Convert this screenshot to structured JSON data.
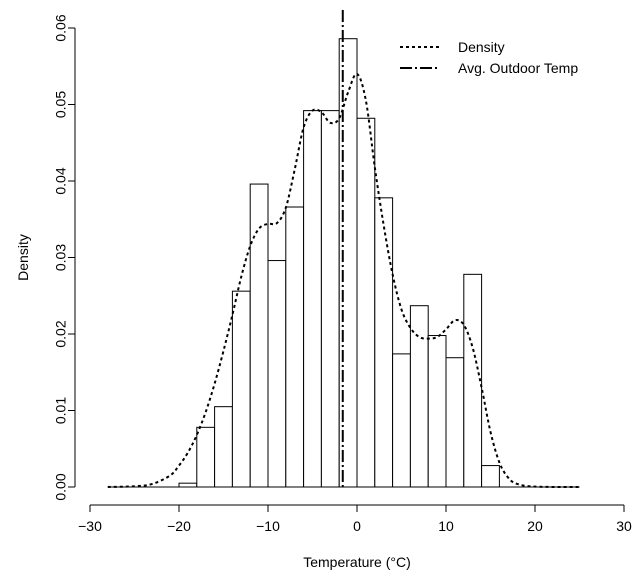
{
  "chart_data": {
    "type": "bar",
    "xlabel": "Temperature (°C)",
    "ylabel": "Density",
    "xlim": [
      -30,
      30
    ],
    "ylim": [
      0,
      0.06
    ],
    "x_ticks": [
      -30,
      -20,
      -10,
      0,
      10,
      20,
      30
    ],
    "x_tick_labels": [
      "−30",
      "−20",
      "−10",
      "0",
      "10",
      "20",
      "30"
    ],
    "y_ticks": [
      0,
      0.01,
      0.02,
      0.03,
      0.04,
      0.05,
      0.06
    ],
    "y_tick_labels": [
      "0.00",
      "0.01",
      "0.02",
      "0.03",
      "0.04",
      "0.05",
      "0.06"
    ],
    "grid": false,
    "legend_position": "top-right",
    "histogram": {
      "bin_width": 2,
      "bins": [
        {
          "x0": -20,
          "x1": -18,
          "density": 0.0005
        },
        {
          "x0": -18,
          "x1": -16,
          "density": 0.0078
        },
        {
          "x0": -16,
          "x1": -14,
          "density": 0.0105
        },
        {
          "x0": -14,
          "x1": -12,
          "density": 0.0256
        },
        {
          "x0": -12,
          "x1": -10,
          "density": 0.0396
        },
        {
          "x0": -10,
          "x1": -8,
          "density": 0.0296
        },
        {
          "x0": -8,
          "x1": -6,
          "density": 0.0366
        },
        {
          "x0": -6,
          "x1": -4,
          "density": 0.0492
        },
        {
          "x0": -4,
          "x1": -2,
          "density": 0.0492
        },
        {
          "x0": -2,
          "x1": 0,
          "density": 0.0586
        },
        {
          "x0": 0,
          "x1": 2,
          "density": 0.0482
        },
        {
          "x0": 2,
          "x1": 4,
          "density": 0.0378
        },
        {
          "x0": 4,
          "x1": 6,
          "density": 0.0174
        },
        {
          "x0": 6,
          "x1": 8,
          "density": 0.0237
        },
        {
          "x0": 8,
          "x1": 10,
          "density": 0.0198
        },
        {
          "x0": 10,
          "x1": 12,
          "density": 0.0169
        },
        {
          "x0": 12,
          "x1": 14,
          "density": 0.0278
        },
        {
          "x0": 14,
          "x1": 16,
          "density": 0.0028
        }
      ]
    },
    "series": [
      {
        "name": "Density",
        "line_style": "dotted",
        "x": [
          -28,
          -25,
          -23,
          -21,
          -20,
          -19,
          -18,
          -17,
          -16,
          -15,
          -14,
          -13,
          -12,
          -11,
          -10,
          -9,
          -8,
          -7,
          -6,
          -5,
          -4,
          -3,
          -2,
          -1,
          0,
          1,
          2,
          3,
          4,
          5,
          6,
          7,
          8,
          9,
          10,
          11,
          12,
          13,
          14,
          15,
          16,
          17,
          18,
          20,
          25
        ],
        "y": [
          0,
          0.0001,
          0.0004,
          0.0015,
          0.0028,
          0.0045,
          0.0068,
          0.0098,
          0.0135,
          0.0178,
          0.0225,
          0.0275,
          0.0315,
          0.0338,
          0.0344,
          0.0345,
          0.0365,
          0.0415,
          0.047,
          0.0492,
          0.049,
          0.0476,
          0.0482,
          0.0516,
          0.054,
          0.0505,
          0.0418,
          0.0342,
          0.0278,
          0.0232,
          0.0208,
          0.0196,
          0.0194,
          0.0196,
          0.0206,
          0.0218,
          0.0212,
          0.0182,
          0.013,
          0.0072,
          0.0032,
          0.0012,
          0.0004,
          5e-05,
          0
        ]
      },
      {
        "name": "Avg. Outdoor Temp",
        "line_style": "dot-dash",
        "vertical_x": -1.6
      }
    ]
  }
}
